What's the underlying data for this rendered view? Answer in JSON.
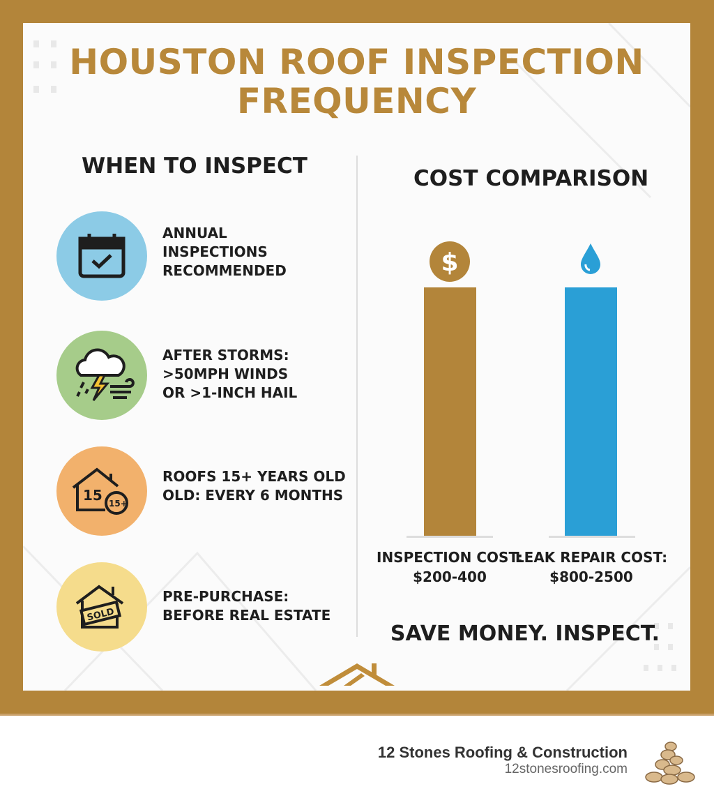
{
  "title": [
    "HOUSTON ROOF INSPECTION",
    "FREQUENCY"
  ],
  "when": {
    "heading": "WHEN TO INSPECT",
    "items": [
      {
        "icon": "calendar-check-icon",
        "color": "#8ccbe6",
        "lines": [
          "ANNUAL",
          "INSPECTIONS",
          "RECOMMENDED"
        ]
      },
      {
        "icon": "storm-icon",
        "color": "#a6cc8a",
        "lines": [
          "AFTER STORMS:",
          ">50MPH WINDS",
          "OR >1-INCH HAIL"
        ]
      },
      {
        "icon": "house-15-icon",
        "color": "#f2b16c",
        "lines": [
          "ROOFS 15+ YEARS OLD",
          "OLD: EVERY 6 MONTHS"
        ]
      },
      {
        "icon": "sold-house-icon",
        "color": "#f5dc8c",
        "lines": [
          "PRE-PURCHASE:",
          "BEFORE REAL ESTATE"
        ]
      }
    ]
  },
  "cost": {
    "heading": "COST COMPARISON",
    "bars": [
      {
        "label": "INSPECTION COST:",
        "value": "$200-400",
        "color": "#b3853a",
        "icon": "dollar-icon"
      },
      {
        "label": "LEAK REPAIR COST:",
        "value": "$800-2500",
        "color": "#2a9fd6",
        "icon": "water-drop-icon"
      }
    ],
    "tagline": "SAVE MONEY. INSPECT."
  },
  "icon_text": {
    "house_number": "15",
    "badge": "15+",
    "sold": "SOLD",
    "dollar": "$"
  },
  "footer": {
    "company": "12 Stones Roofing & Construction",
    "url": "12stonesroofing.com"
  }
}
